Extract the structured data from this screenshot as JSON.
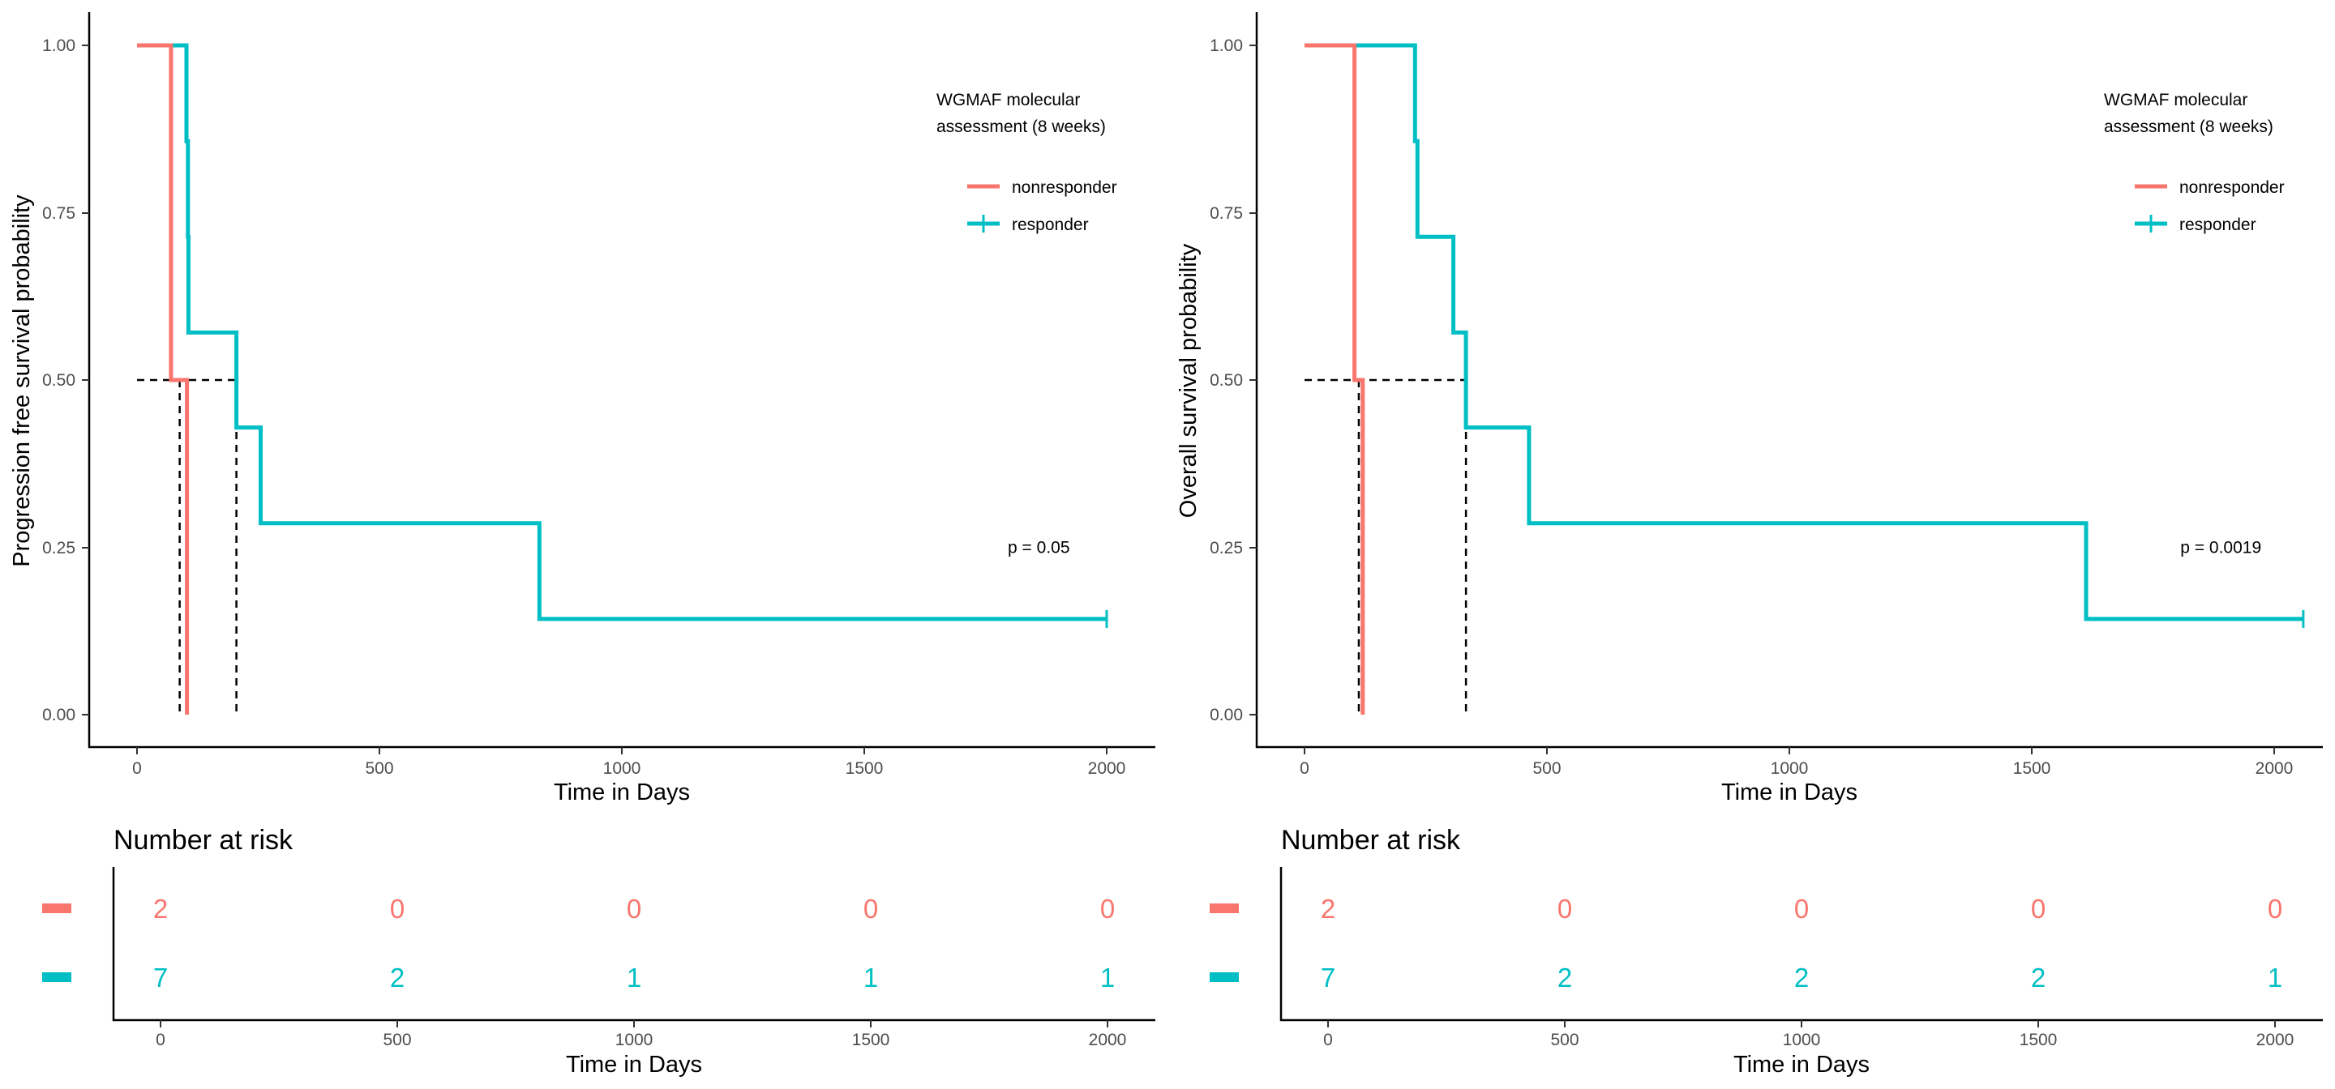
{
  "colors": {
    "nonresponder": "#F8766D",
    "responder": "#00BFC4",
    "axis": "#000000",
    "tick_text": "#4d4d4d",
    "median": "#000000"
  },
  "chart_data": [
    {
      "type": "line",
      "subtype": "kaplan-meier",
      "ylabel": "Progression free survival probability",
      "xlabel": "Time in Days",
      "x_ticks": [
        0,
        500,
        1000,
        1500,
        2000
      ],
      "y_ticks": [
        "0.00",
        "0.25",
        "0.50",
        "0.75",
        "1.00"
      ],
      "xlim": [
        -100,
        2100
      ],
      "ylim": [
        0,
        1
      ],
      "legend": {
        "title_lines": [
          "WGMAF molecular",
          "assessment (8 weeks)"
        ],
        "position": "top-right"
      },
      "series": [
        {
          "name": "nonresponder",
          "color": "#F8766D",
          "steps": [
            [
              0,
              1.0
            ],
            [
              70,
              1.0
            ],
            [
              70,
              0.5
            ],
            [
              103,
              0.5
            ],
            [
              103,
              0.0
            ]
          ],
          "censor": []
        },
        {
          "name": "responder",
          "color": "#00BFC4",
          "steps": [
            [
              0,
              1.0
            ],
            [
              102,
              1.0
            ],
            [
              102,
              0.857
            ],
            [
              105,
              0.857
            ],
            [
              105,
              0.714
            ],
            [
              106,
              0.714
            ],
            [
              106,
              0.571
            ],
            [
              205,
              0.571
            ],
            [
              205,
              0.429
            ],
            [
              255,
              0.429
            ],
            [
              255,
              0.286
            ],
            [
              830,
              0.286
            ],
            [
              830,
              0.143
            ],
            [
              2000,
              0.143
            ]
          ],
          "censor": [
            [
              2000,
              0.143
            ]
          ]
        }
      ],
      "medians": [
        {
          "x": 88,
          "y": 0.5
        },
        {
          "x": 205,
          "y": 0.5
        }
      ],
      "annotation": "p = 0.05",
      "annotation_pos": {
        "x": 1860,
        "y": 0.25
      },
      "risk_table": {
        "title": "Number at risk",
        "xlabel": "Time in Days",
        "times": [
          0,
          500,
          1000,
          1500,
          2000
        ],
        "rows": [
          {
            "group": "nonresponder",
            "counts": [
              "2",
              "0",
              "0",
              "0",
              "0"
            ]
          },
          {
            "group": "responder",
            "counts": [
              "7",
              "2",
              "1",
              "1",
              "1"
            ]
          }
        ]
      }
    },
    {
      "type": "line",
      "subtype": "kaplan-meier",
      "ylabel": "Overall survival probability",
      "xlabel": "Time in Days",
      "x_ticks": [
        0,
        500,
        1000,
        1500,
        2000
      ],
      "y_ticks": [
        "0.00",
        "0.25",
        "0.50",
        "0.75",
        "1.00"
      ],
      "xlim": [
        -100,
        2100
      ],
      "ylim": [
        0,
        1
      ],
      "legend": {
        "title_lines": [
          "WGMAF molecular",
          "assessment (8 weeks)"
        ],
        "position": "top-right"
      },
      "series": [
        {
          "name": "nonresponder",
          "color": "#F8766D",
          "steps": [
            [
              0,
              1.0
            ],
            [
              103,
              1.0
            ],
            [
              103,
              0.5
            ],
            [
              120,
              0.5
            ],
            [
              120,
              0.0
            ]
          ],
          "censor": []
        },
        {
          "name": "responder",
          "color": "#00BFC4",
          "steps": [
            [
              0,
              1.0
            ],
            [
              228,
              1.0
            ],
            [
              228,
              0.857
            ],
            [
              233,
              0.857
            ],
            [
              233,
              0.714
            ],
            [
              307,
              0.714
            ],
            [
              307,
              0.571
            ],
            [
              333,
              0.571
            ],
            [
              333,
              0.429
            ],
            [
              463,
              0.429
            ],
            [
              463,
              0.286
            ],
            [
              1612,
              0.286
            ],
            [
              1612,
              0.143
            ],
            [
              2060,
              0.143
            ]
          ],
          "censor": [
            [
              2060,
              0.143
            ]
          ]
        }
      ],
      "medians": [
        {
          "x": 112,
          "y": 0.5
        },
        {
          "x": 333,
          "y": 0.5
        }
      ],
      "annotation": "p = 0.0019",
      "annotation_pos": {
        "x": 1890,
        "y": 0.25
      },
      "risk_table": {
        "title": "Number at risk",
        "xlabel": "Time in Days",
        "times": [
          0,
          500,
          1000,
          1500,
          2000
        ],
        "rows": [
          {
            "group": "nonresponder",
            "counts": [
              "2",
              "0",
              "0",
              "0",
              "0"
            ]
          },
          {
            "group": "responder",
            "counts": [
              "7",
              "2",
              "2",
              "2",
              "1"
            ]
          }
        ]
      }
    }
  ]
}
